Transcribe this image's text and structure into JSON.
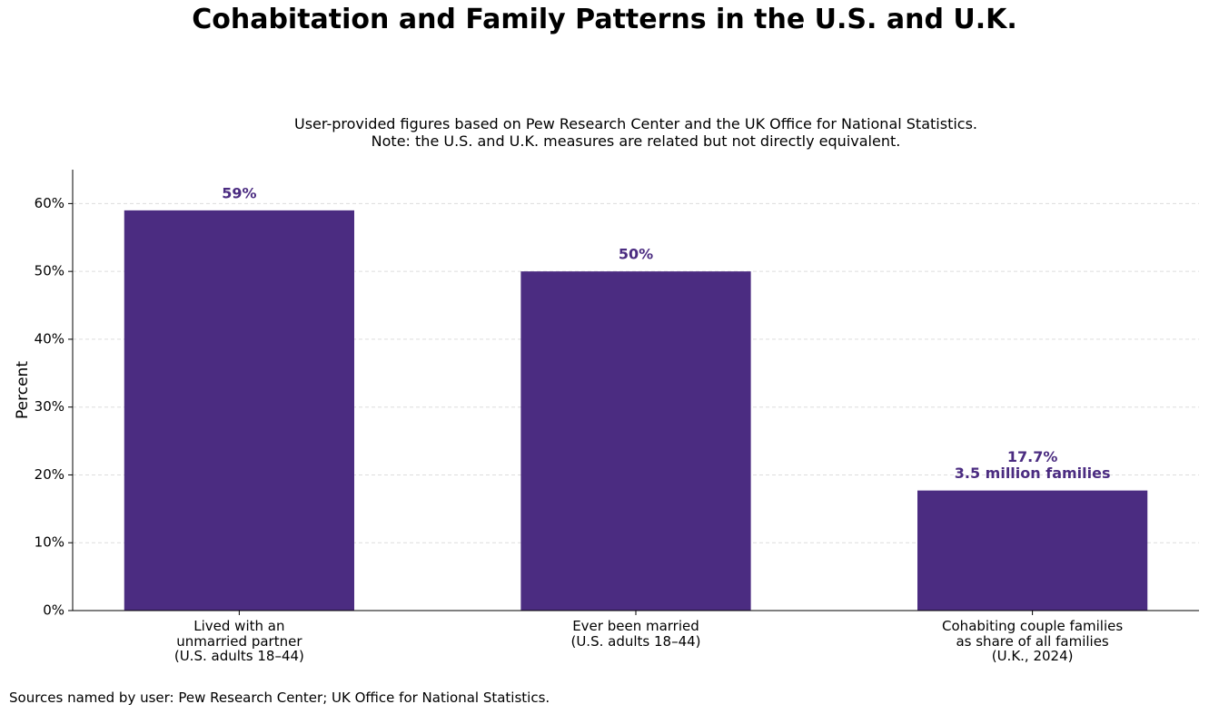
{
  "chart_data": {
    "type": "bar",
    "title": "Cohabitation and Family Patterns in the U.S. and U.K.",
    "subtitle": "User-provided figures based on Pew Research Center and the UK Office for National Statistics.\nNote: the U.S. and U.K. measures are related but not directly equivalent.",
    "y_label": "Percent",
    "source": "Sources named by user: Pew Research Center; UK Office for National Statistics.",
    "categories": [
      "Lived with an\nunmarried partner\n(U.S. adults 18–44)",
      "Ever been married\n(U.S. adults 18–44)",
      "Cohabiting couple families\nas share of all families\n(U.K., 2024)"
    ],
    "values": [
      59,
      50,
      17.7
    ],
    "value_labels": [
      "59%",
      "50%",
      "17.7%"
    ],
    "annotations": [
      null,
      null,
      "3.5 million families"
    ],
    "color": "#4b2c81",
    "ylim": [
      0,
      65
    ],
    "yticks": [
      {
        "value": 0,
        "label": "0%"
      },
      {
        "value": 10,
        "label": "10%"
      },
      {
        "value": 20,
        "label": "20%"
      },
      {
        "value": 30,
        "label": "30%"
      },
      {
        "value": 40,
        "label": "40%"
      },
      {
        "value": 50,
        "label": "50%"
      },
      {
        "value": 60,
        "label": "60%"
      }
    ],
    "grid": true
  }
}
